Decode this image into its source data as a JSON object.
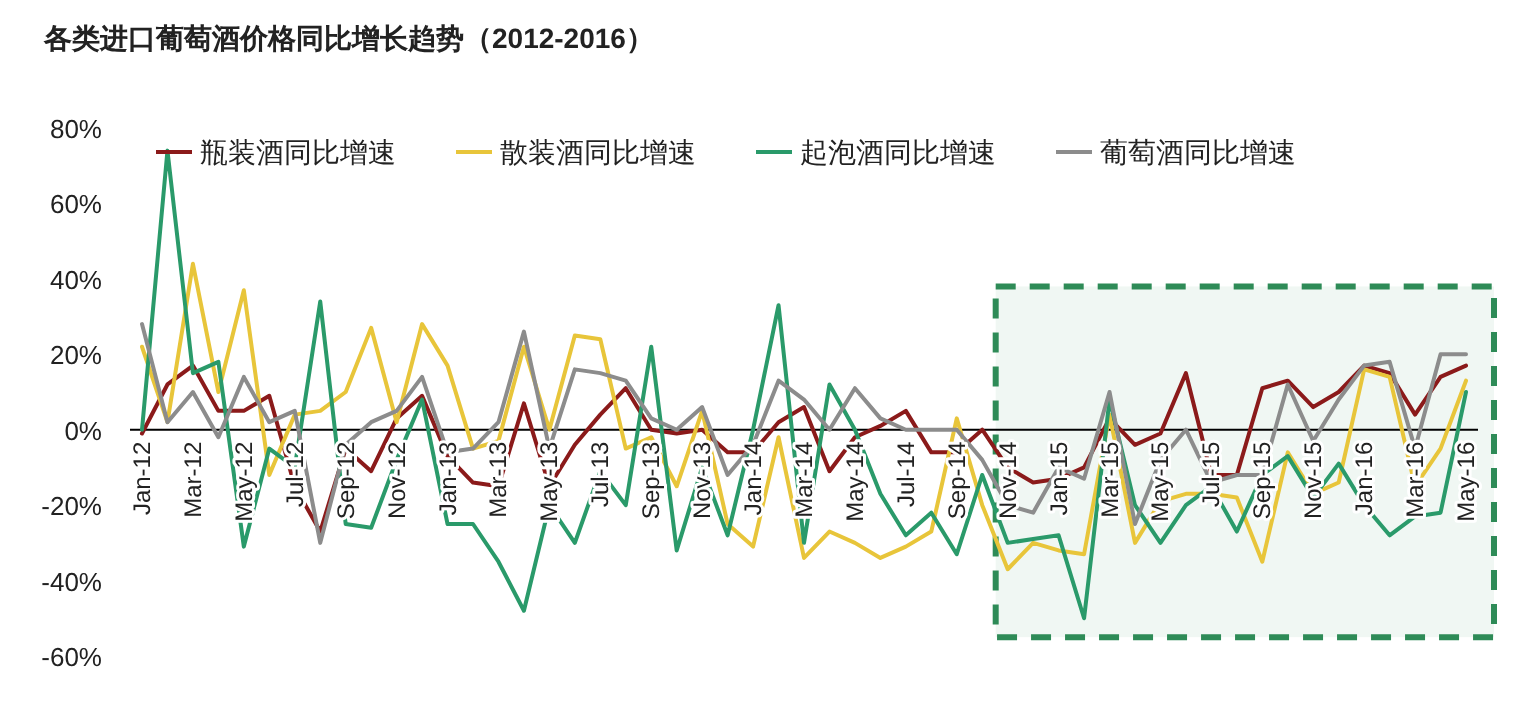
{
  "chart_data": {
    "type": "line",
    "title": "各类进口葡萄酒价格同比增长趋势（2012-2016）",
    "categories": [
      "Jan-12",
      null,
      "Mar-12",
      null,
      "May-12",
      null,
      "Jul-12",
      null,
      "Sep-12",
      null,
      "Nov-12",
      null,
      "Jan-13",
      null,
      "Mar-13",
      null,
      "May-13",
      null,
      "Jul-13",
      null,
      "Sep-13",
      null,
      "Nov-13",
      null,
      "Jan-14",
      null,
      "Mar-14",
      null,
      "May-14",
      null,
      "Jul-14",
      null,
      "Sep-14",
      null,
      "Nov-14",
      null,
      "Jan-15",
      null,
      "Mar-15",
      null,
      "May-15",
      null,
      "Jul-15",
      null,
      "Sep-15",
      null,
      "Nov-15",
      null,
      "Jan-16",
      null,
      "Mar-16",
      null,
      "May-16"
    ],
    "series": [
      {
        "name": "瓶装酒同比增速",
        "color": "#8b1a1a",
        "values": [
          -1,
          12,
          17,
          5,
          5,
          9,
          -15,
          -27,
          -5,
          -11,
          3,
          9,
          -7,
          -14,
          -15,
          7,
          -15,
          -4,
          4,
          11,
          0,
          -1,
          0,
          -6,
          -6,
          2,
          6,
          -11,
          -2,
          1,
          5,
          -6,
          -6,
          0,
          -10,
          -14,
          -13,
          -10,
          3,
          -4,
          -1,
          15,
          -12,
          -12,
          11,
          13,
          6,
          10,
          17,
          15,
          4,
          14,
          17
        ]
      },
      {
        "name": "散装酒同比增速",
        "color": "#e8c53a",
        "values": [
          22,
          2,
          44,
          10,
          37,
          -12,
          4,
          5,
          10,
          27,
          2,
          28,
          17,
          -5,
          -3,
          22,
          0,
          25,
          24,
          -5,
          -2,
          -15,
          5,
          -25,
          -31,
          -2,
          -34,
          -27,
          -30,
          -34,
          -31,
          -27,
          3,
          -20,
          -37,
          -30,
          -32,
          -33,
          4,
          -30,
          -19,
          -17,
          -17,
          -18,
          -35,
          -6,
          -17,
          -14,
          16,
          14,
          -15,
          -5,
          13
        ]
      },
      {
        "name": "起泡酒同比增速",
        "color": "#2a9a6a",
        "values": [
          0,
          74,
          15,
          18,
          -31,
          -5,
          -10,
          34,
          -25,
          -26,
          -8,
          8,
          -25,
          -25,
          -35,
          -48,
          -20,
          -30,
          -11,
          -20,
          22,
          -32,
          -10,
          -28,
          0,
          33,
          -30,
          12,
          0,
          -17,
          -28,
          -22,
          -33,
          -12,
          -30,
          -29,
          -28,
          -50,
          8,
          -20,
          -30,
          -20,
          -15,
          -27,
          -12,
          -7,
          -18,
          -9,
          -20,
          -28,
          -23,
          -22,
          10
        ]
      },
      {
        "name": "葡萄酒同比增速",
        "color": "#8c8c8c",
        "values": [
          28,
          2,
          10,
          -2,
          14,
          2,
          5,
          -30,
          -4,
          2,
          5,
          14,
          -6,
          -5,
          2,
          26,
          -5,
          16,
          15,
          13,
          3,
          0,
          6,
          -12,
          -4,
          13,
          8,
          0,
          11,
          3,
          0,
          0,
          0,
          -8,
          -20,
          -22,
          -10,
          -13,
          10,
          -25,
          -8,
          0,
          -14,
          -12,
          -12,
          12,
          -3,
          8,
          17,
          18,
          -5,
          20,
          20
        ]
      }
    ],
    "ylim": [
      -60,
      80
    ],
    "yticks": [
      {
        "value": -60,
        "label": "-60%"
      },
      {
        "value": -40,
        "label": "-40%"
      },
      {
        "value": -20,
        "label": "-20%"
      },
      {
        "value": 0,
        "label": "0%"
      },
      {
        "value": 20,
        "label": "20%"
      },
      {
        "value": 40,
        "label": "40%"
      },
      {
        "value": 60,
        "label": "60%"
      },
      {
        "value": 80,
        "label": "80%"
      }
    ],
    "bands": [
      {
        "axis": "x",
        "from": "Nov-14",
        "to": "May-16",
        "color": "#2e8b57"
      }
    ],
    "legend": "top",
    "line_style": "solid",
    "marker": "none"
  }
}
